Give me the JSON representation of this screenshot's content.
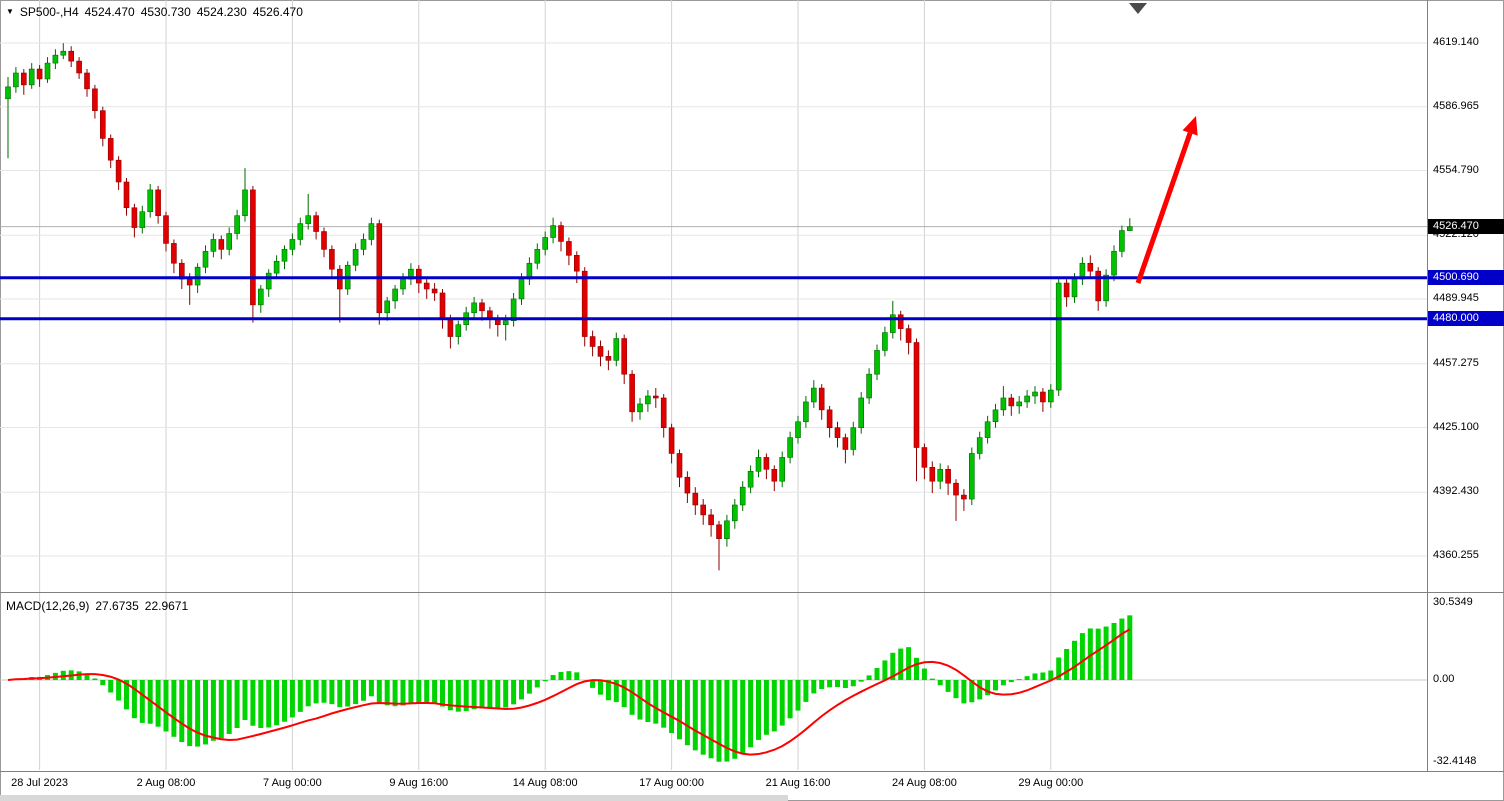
{
  "header": {
    "symbol_period": "SP500-,H4",
    "open": "4524.470",
    "high": "4530.730",
    "low": "4524.230",
    "close": "4526.470"
  },
  "macd_panel": {
    "title": "MACD(12,26,9)",
    "value_main": "27.6735",
    "value_signal": "22.9671"
  },
  "colors": {
    "up": "#00C200",
    "up_dark": "#006A00",
    "down": "#E00000",
    "down_dark": "#8F0000",
    "macd_bar": "#00D400",
    "macd_line": "#FF0000",
    "hline": "#0000C8",
    "arrow": "#FF0000",
    "grid_v": "#D2D2D2",
    "grid_h": "#E6E6E6",
    "price_line": "#B0B0B0",
    "current_tag_bg": "#000000"
  },
  "chart_data": {
    "type": "candlestick",
    "symbol": "SP500-",
    "timeframe": "H4",
    "y_axis_labels": [
      {
        "v": 4619.14,
        "t": "4619.140"
      },
      {
        "v": 4586.965,
        "t": "4586.965"
      },
      {
        "v": 4554.79,
        "t": "4554.790"
      },
      {
        "v": 4522.12,
        "t": "4522.120"
      },
      {
        "v": 4489.945,
        "t": "4489.945"
      },
      {
        "v": 4457.275,
        "t": "4457.275"
      },
      {
        "v": 4425.1,
        "t": "4425.100"
      },
      {
        "v": 4392.43,
        "t": "4392.430"
      },
      {
        "v": 4360.255,
        "t": "4360.255"
      }
    ],
    "x_ticks": [
      {
        "i": 4,
        "t": "28 Jul 2023"
      },
      {
        "i": 20,
        "t": "2 Aug 08:00"
      },
      {
        "i": 36,
        "t": "7 Aug 00:00"
      },
      {
        "i": 52,
        "t": "9 Aug 16:00"
      },
      {
        "i": 68,
        "t": "14 Aug 08:00"
      },
      {
        "i": 84,
        "t": "17 Aug 00:00"
      },
      {
        "i": 100,
        "t": "21 Aug 16:00"
      },
      {
        "i": 116,
        "t": "24 Aug 08:00"
      },
      {
        "i": 132,
        "t": "29 Aug 00:00"
      }
    ],
    "hlines": [
      {
        "v": 4500.69,
        "t": "4500.690"
      },
      {
        "v": 4480.0,
        "t": "4480.000"
      }
    ],
    "current_price": {
      "v": 4526.47,
      "t": "4526.470"
    },
    "annotations": [
      {
        "type": "arrow",
        "from": [
          1138,
          283
        ],
        "to": [
          1196,
          116
        ],
        "color": "#FF0000"
      }
    ],
    "macd": {
      "params": "12,26,9",
      "last_main": 27.6735,
      "last_signal": 22.9671,
      "axis": [
        {
          "v": 30.5349,
          "t": "30.5349"
        },
        {
          "v": 0,
          "t": "0.00"
        },
        {
          "v": -32.4148,
          "t": "-32.4148"
        }
      ]
    },
    "candles": [
      [
        4591,
        4602,
        4561,
        4597
      ],
      [
        4597,
        4607,
        4594,
        4604
      ],
      [
        4604,
        4606,
        4593,
        4598
      ],
      [
        4598,
        4609,
        4596,
        4606
      ],
      [
        4606,
        4608,
        4597,
        4601
      ],
      [
        4601,
        4612,
        4599,
        4609
      ],
      [
        4609,
        4616,
        4606,
        4613
      ],
      [
        4613,
        4619.1,
        4611,
        4615
      ],
      [
        4615,
        4617.5,
        4607,
        4610
      ],
      [
        4610,
        4612,
        4601,
        4604
      ],
      [
        4604,
        4606,
        4592,
        4596
      ],
      [
        4596,
        4598,
        4581,
        4585
      ],
      [
        4585,
        4587,
        4567,
        4571
      ],
      [
        4571,
        4573,
        4556,
        4560
      ],
      [
        4560,
        4562,
        4545,
        4549
      ],
      [
        4549,
        4551,
        4532,
        4536
      ],
      [
        4536,
        4538,
        4521,
        4526
      ],
      [
        4526,
        4537,
        4523,
        4534
      ],
      [
        4534,
        4548,
        4531,
        4545
      ],
      [
        4545,
        4547,
        4528,
        4532
      ],
      [
        4532,
        4534,
        4514,
        4518
      ],
      [
        4518,
        4520,
        4503,
        4508
      ],
      [
        4508,
        4510,
        4495,
        4500
      ],
      [
        4500,
        4503,
        4487,
        4497
      ],
      [
        4497,
        4508,
        4493,
        4506
      ],
      [
        4506,
        4517,
        4503,
        4514
      ],
      [
        4514,
        4523,
        4511,
        4520
      ],
      [
        4520,
        4522,
        4510,
        4515
      ],
      [
        4515,
        4526,
        4512,
        4523
      ],
      [
        4523,
        4535,
        4520,
        4532
      ],
      [
        4532,
        4556,
        4529,
        4545
      ],
      [
        4545,
        4547,
        4478,
        4487
      ],
      [
        4487,
        4497,
        4483,
        4495
      ],
      [
        4495,
        4505,
        4491,
        4503
      ],
      [
        4503,
        4512,
        4500,
        4509
      ],
      [
        4509,
        4517,
        4505,
        4515
      ],
      [
        4515,
        4523,
        4512,
        4520
      ],
      [
        4520,
        4531,
        4517,
        4528
      ],
      [
        4528,
        4543,
        4525,
        4532
      ],
      [
        4532,
        4534,
        4520,
        4524
      ],
      [
        4524,
        4526,
        4511,
        4515
      ],
      [
        4515,
        4517,
        4500,
        4505
      ],
      [
        4505,
        4507,
        4478,
        4495
      ],
      [
        4495,
        4509,
        4492,
        4507
      ],
      [
        4507,
        4518,
        4504,
        4515
      ],
      [
        4515,
        4523,
        4512,
        4520
      ],
      [
        4520,
        4531,
        4517,
        4528
      ],
      [
        4528,
        4530,
        4477,
        4483
      ],
      [
        4483,
        4491,
        4479,
        4489
      ],
      [
        4489,
        4497,
        4485,
        4495
      ],
      [
        4495,
        4503,
        4492,
        4500
      ],
      [
        4500,
        4508,
        4497,
        4505
      ],
      [
        4505,
        4507,
        4493,
        4498
      ],
      [
        4498,
        4500,
        4490,
        4495
      ],
      [
        4495,
        4498,
        4489,
        4493
      ],
      [
        4493,
        4495,
        4475,
        4480
      ],
      [
        4480,
        4482,
        4465,
        4471
      ],
      [
        4471,
        4479,
        4467,
        4477
      ],
      [
        4477,
        4486,
        4474,
        4483
      ],
      [
        4483,
        4491,
        4480,
        4488
      ],
      [
        4488,
        4490,
        4479,
        4484
      ],
      [
        4484,
        4486,
        4475,
        4480
      ],
      [
        4480,
        4482,
        4471,
        4477
      ],
      [
        4477,
        4482,
        4469,
        4479
      ],
      [
        4479,
        4493,
        4476,
        4490
      ],
      [
        4490,
        4503,
        4487,
        4500
      ],
      [
        4500,
        4511,
        4497,
        4508
      ],
      [
        4508,
        4518,
        4505,
        4515
      ],
      [
        4515,
        4524,
        4512,
        4521
      ],
      [
        4521,
        4531,
        4518,
        4527
      ],
      [
        4527,
        4529,
        4514,
        4519
      ],
      [
        4519,
        4521,
        4507,
        4512
      ],
      [
        4512,
        4514,
        4498,
        4504
      ],
      [
        4504,
        4506,
        4466,
        4471
      ],
      [
        4471,
        4474,
        4461,
        4466
      ],
      [
        4466,
        4469,
        4456,
        4461
      ],
      [
        4461,
        4464,
        4454,
        4459
      ],
      [
        4459,
        4473,
        4456,
        4470
      ],
      [
        4470,
        4472,
        4447,
        4452
      ],
      [
        4452,
        4454,
        4428,
        4433
      ],
      [
        4433,
        4440,
        4429,
        4437
      ],
      [
        4437,
        4444,
        4433,
        4441
      ],
      [
        4441,
        4445,
        4435,
        4440
      ],
      [
        4440,
        4442,
        4420,
        4425
      ],
      [
        4425,
        4427,
        4407,
        4412
      ],
      [
        4412,
        4414,
        4395,
        4400
      ],
      [
        4400,
        4403,
        4387,
        4392
      ],
      [
        4392,
        4395,
        4381,
        4386
      ],
      [
        4386,
        4389,
        4376,
        4381
      ],
      [
        4381,
        4384,
        4370,
        4376
      ],
      [
        4376,
        4378,
        4353,
        4369
      ],
      [
        4369,
        4381,
        4365,
        4378
      ],
      [
        4378,
        4389,
        4374,
        4386
      ],
      [
        4386,
        4398,
        4383,
        4395
      ],
      [
        4395,
        4406,
        4392,
        4403
      ],
      [
        4403,
        4414,
        4400,
        4410
      ],
      [
        4410,
        4412,
        4399,
        4404
      ],
      [
        4404,
        4406,
        4393,
        4398
      ],
      [
        4398,
        4413,
        4395,
        4410
      ],
      [
        4410,
        4423,
        4407,
        4420
      ],
      [
        4420,
        4431,
        4417,
        4428
      ],
      [
        4428,
        4441,
        4425,
        4438
      ],
      [
        4438,
        4449,
        4435,
        4445
      ],
      [
        4445,
        4447,
        4429,
        4434
      ],
      [
        4434,
        4436,
        4420,
        4425
      ],
      [
        4425,
        4428,
        4415,
        4420
      ],
      [
        4420,
        4422,
        4407,
        4414
      ],
      [
        4414,
        4428,
        4411,
        4425
      ],
      [
        4425,
        4443,
        4422,
        4440
      ],
      [
        4440,
        4455,
        4437,
        4452
      ],
      [
        4452,
        4467,
        4449,
        4464
      ],
      [
        4464,
        4476,
        4461,
        4473
      ],
      [
        4473,
        4489,
        4470,
        4482
      ],
      [
        4482,
        4484,
        4469,
        4475
      ],
      [
        4475,
        4477,
        4462,
        4468
      ],
      [
        4468,
        4470,
        4398,
        4415
      ],
      [
        4415,
        4417,
        4399,
        4405
      ],
      [
        4405,
        4408,
        4392,
        4398
      ],
      [
        4398,
        4407,
        4394,
        4404
      ],
      [
        4404,
        4406,
        4391,
        4397
      ],
      [
        4397,
        4399,
        4378,
        4391
      ],
      [
        4391,
        4394,
        4383,
        4389
      ],
      [
        4389,
        4415,
        4386,
        4412
      ],
      [
        4412,
        4423,
        4409,
        4420
      ],
      [
        4420,
        4431,
        4417,
        4428
      ],
      [
        4428,
        4437,
        4425,
        4434
      ],
      [
        4434,
        4446,
        4431,
        4440
      ],
      [
        4440,
        4442,
        4431,
        4436
      ],
      [
        4436,
        4441,
        4432,
        4438
      ],
      [
        4438,
        4444,
        4435,
        4441
      ],
      [
        4441,
        4446,
        4437,
        4443
      ],
      [
        4443,
        4445,
        4433,
        4438
      ],
      [
        4438,
        4447,
        4435,
        4444
      ],
      [
        4444,
        4501,
        4441,
        4498
      ],
      [
        4498,
        4500,
        4486,
        4491
      ],
      [
        4491,
        4503,
        4488,
        4500
      ],
      [
        4500,
        4511,
        4497,
        4508
      ],
      [
        4508,
        4512,
        4500,
        4504
      ],
      [
        4504,
        4506,
        4484,
        4489
      ],
      [
        4489,
        4505,
        4486,
        4502
      ],
      [
        4502,
        4517,
        4499,
        4514
      ],
      [
        4514,
        4527,
        4511,
        4524.5
      ],
      [
        4524.47,
        4530.73,
        4524.23,
        4526.47
      ]
    ]
  }
}
